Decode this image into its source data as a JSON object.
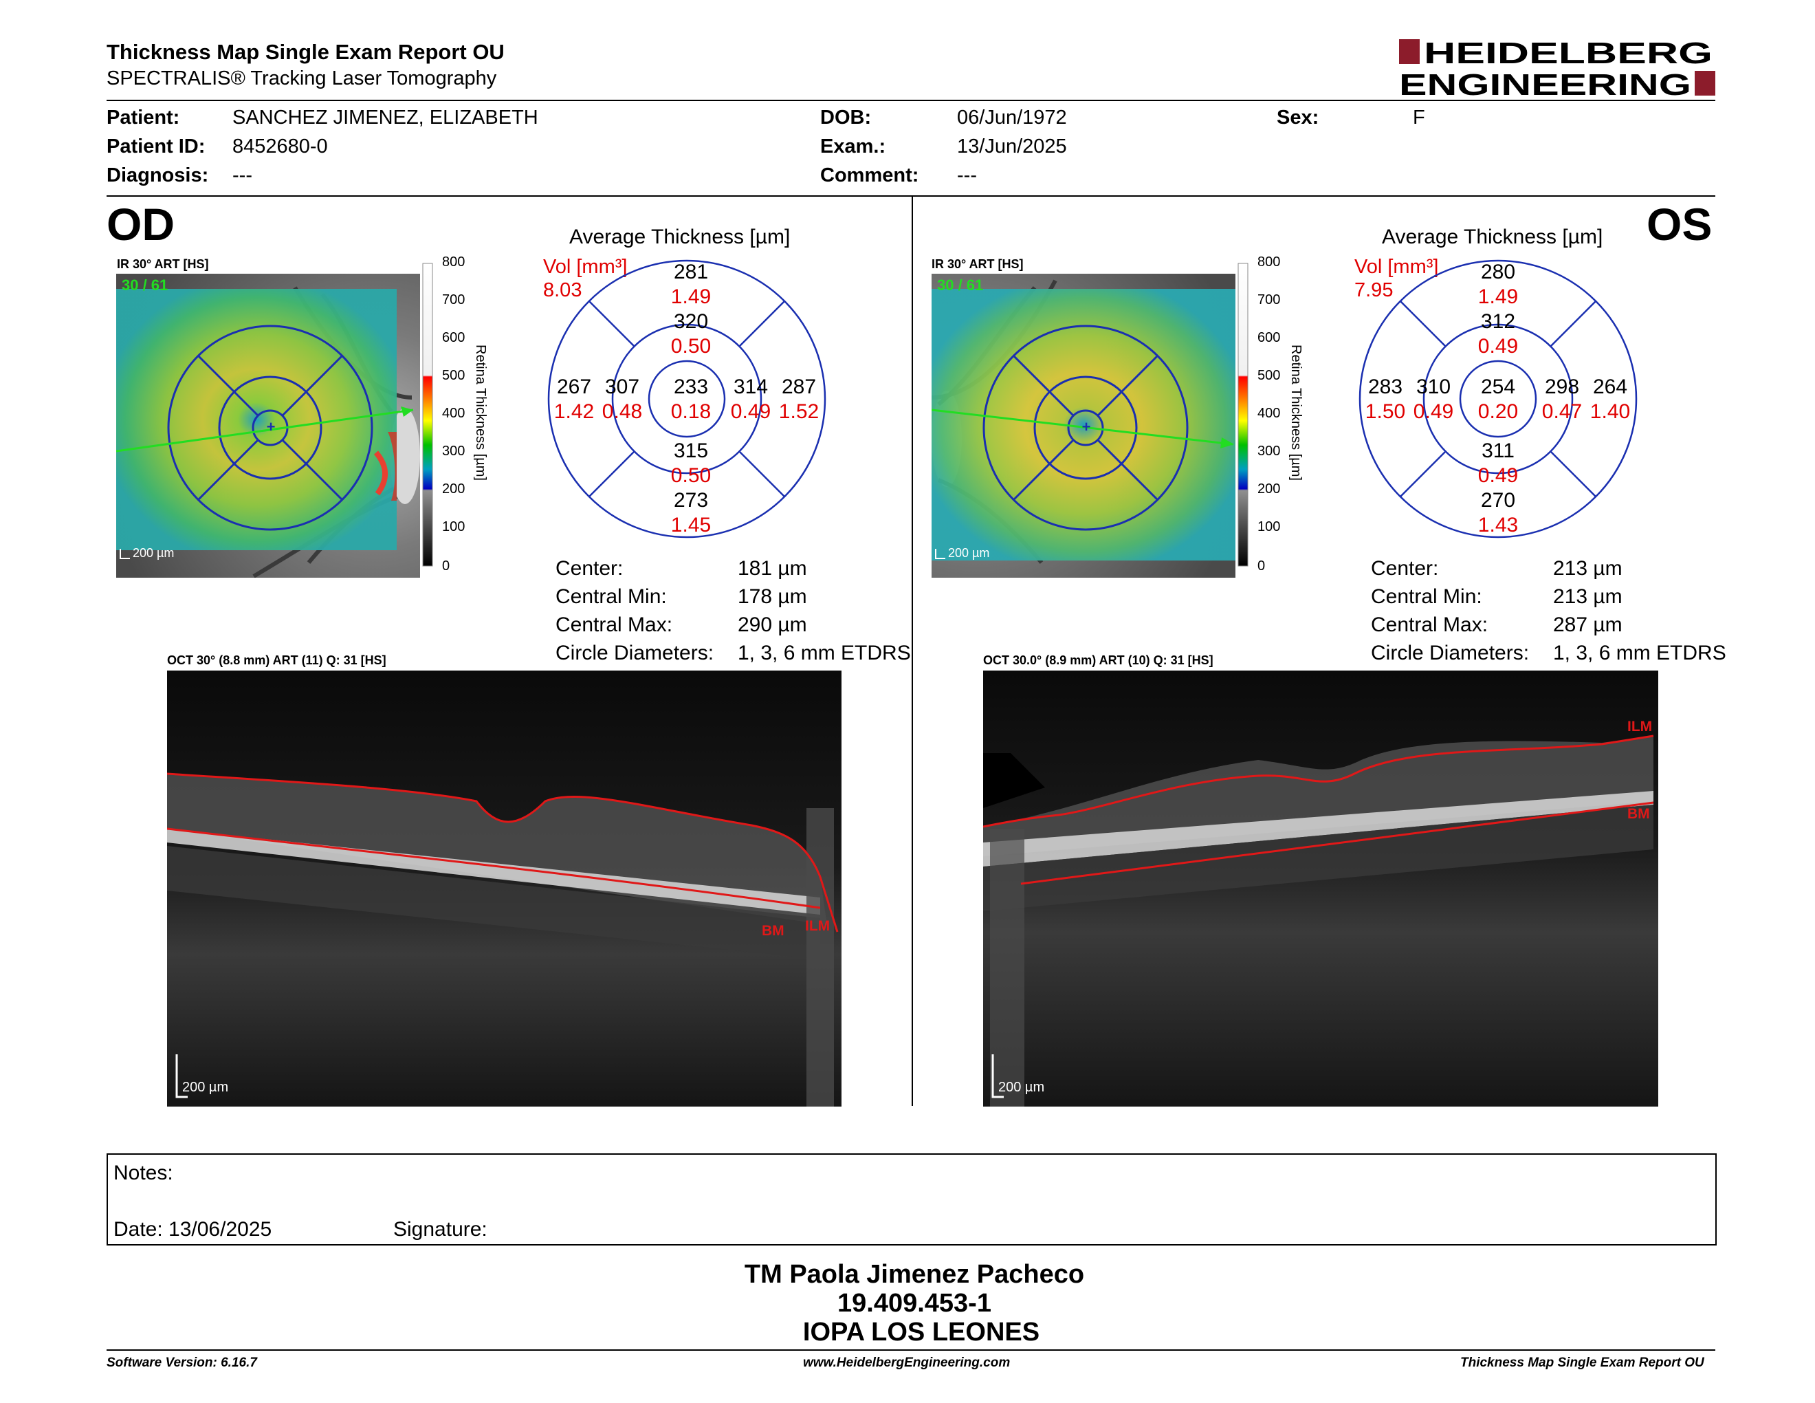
{
  "header": {
    "title": "Thickness Map Single Exam Report OU",
    "subtitle": "SPECTRALIS® Tracking Laser Tomography",
    "logo_line1": "HEIDELBERG",
    "logo_line2": "ENGINEERING"
  },
  "patient": {
    "patient_label": "Patient:",
    "patient_value": "SANCHEZ JIMENEZ, ELIZABETH",
    "id_label": "Patient ID:",
    "id_value": "8452680-0",
    "diagnosis_label": "Diagnosis:",
    "diagnosis_value": "---",
    "dob_label": "DOB:",
    "dob_value": "06/Jun/1972",
    "exam_label": "Exam.:",
    "exam_value": "13/Jun/2025",
    "comment_label": "Comment:",
    "comment_value": "---",
    "sex_label": "Sex:",
    "sex_value": "F"
  },
  "colorbar": {
    "title": "Retina Thickness [µm]",
    "ticks": [
      "800",
      "700",
      "600",
      "500",
      "400",
      "300",
      "200",
      "100",
      "0"
    ]
  },
  "od": {
    "eye": "OD",
    "ir_label": "IR 30° ART [HS]",
    "ir_overlay": "30 / 61",
    "scale": "200 µm",
    "avg_title": "Average Thickness [µm]",
    "vol_label": "Vol [mm³]",
    "vol_total": "8.03",
    "sectors": {
      "outer_sup": {
        "t": "281",
        "v": "1.49"
      },
      "inner_sup": {
        "t": "320",
        "v": "0.50"
      },
      "center": {
        "t": "233",
        "v": "0.18"
      },
      "inner_inf": {
        "t": "315",
        "v": "0.50"
      },
      "outer_inf": {
        "t": "273",
        "v": "1.45"
      },
      "outer_left": {
        "t": "267",
        "v": "1.42"
      },
      "inner_left": {
        "t": "307",
        "v": "0.48"
      },
      "inner_right": {
        "t": "314",
        "v": "0.49"
      },
      "outer_right": {
        "t": "287",
        "v": "1.52"
      }
    },
    "stats": [
      {
        "label": "Center:",
        "value": "181 µm"
      },
      {
        "label": "Central Min:",
        "value": "178 µm"
      },
      {
        "label": "Central Max:",
        "value": "290 µm"
      },
      {
        "label": "Circle Diameters:",
        "value": "1, 3, 6 mm ETDRS"
      }
    ],
    "oct_label": "OCT 30° (8.8 mm) ART (11) Q: 31 [HS]",
    "oct_scale": "200 µm",
    "bm": "BM",
    "ilm": "ILM"
  },
  "os": {
    "eye": "OS",
    "ir_label": "IR 30° ART [HS]",
    "ir_overlay": "30 / 61",
    "scale": "200 µm",
    "avg_title": "Average Thickness [µm]",
    "vol_label": "Vol [mm³]",
    "vol_total": "7.95",
    "sectors": {
      "outer_sup": {
        "t": "280",
        "v": "1.49"
      },
      "inner_sup": {
        "t": "312",
        "v": "0.49"
      },
      "center": {
        "t": "254",
        "v": "0.20"
      },
      "inner_inf": {
        "t": "311",
        "v": "0.49"
      },
      "outer_inf": {
        "t": "270",
        "v": "1.43"
      },
      "outer_left": {
        "t": "283",
        "v": "1.50"
      },
      "inner_left": {
        "t": "310",
        "v": "0.49"
      },
      "inner_right": {
        "t": "298",
        "v": "0.47"
      },
      "outer_right": {
        "t": "264",
        "v": "1.40"
      }
    },
    "stats": [
      {
        "label": "Center:",
        "value": "213 µm"
      },
      {
        "label": "Central Min:",
        "value": "213 µm"
      },
      {
        "label": "Central Max:",
        "value": "287 µm"
      },
      {
        "label": "Circle Diameters:",
        "value": "1, 3, 6 mm ETDRS"
      }
    ],
    "oct_label": "OCT 30.0° (8.9 mm) ART (10) Q: 31 [HS]",
    "oct_scale": "200 µm",
    "bm": "BM",
    "ilm": "ILM"
  },
  "notes": {
    "notes_label": "Notes:",
    "date_label": "Date: 13/06/2025",
    "signature_label": "Signature:"
  },
  "signer": {
    "name": "TM Paola Jimenez Pacheco",
    "id": "19.409.453-1",
    "org": "IOPA LOS LEONES"
  },
  "footer": {
    "software": "Software Version: 6.16.7",
    "url": "www.HeidelbergEngineering.com",
    "report": "Thickness Map Single Exam Report OU"
  },
  "colors": {
    "etdrs_blue": "#1a2fb0",
    "volume_red": "#e00000",
    "logo_red": "#8c1c2b",
    "overlay_green": "#22dd22"
  }
}
